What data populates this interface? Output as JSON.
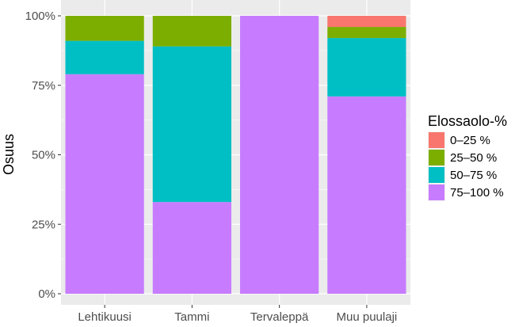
{
  "chart_data": {
    "type": "bar",
    "stacked": true,
    "normalized": true,
    "categories": [
      "Lehtikuusi",
      "Tammi",
      "Tervaleppä",
      "Muu puulaji"
    ],
    "series": [
      {
        "name": "0–25 %",
        "color": "#F8766D",
        "values": [
          0.0,
          0.0,
          0.0,
          0.04
        ]
      },
      {
        "name": "25–50 %",
        "color": "#7CAE00",
        "values": [
          0.09,
          0.11,
          0.0,
          0.04
        ]
      },
      {
        "name": "50–75 %",
        "color": "#00BFC4",
        "values": [
          0.12,
          0.56,
          0.0,
          0.21
        ]
      },
      {
        "name": "75–100 %",
        "color": "#C77CFF",
        "values": [
          0.79,
          0.33,
          1.0,
          0.71
        ]
      }
    ],
    "ylabel": "Osuus",
    "xlabel": "",
    "ylim": [
      0,
      1
    ],
    "yticks": [
      {
        "value": 0,
        "label": "0%"
      },
      {
        "value": 0.25,
        "label": "25%"
      },
      {
        "value": 0.5,
        "label": "50%"
      },
      {
        "value": 0.75,
        "label": "75%"
      },
      {
        "value": 1,
        "label": "100%"
      }
    ],
    "grid": true,
    "legend": {
      "title": "Elossaolo-%",
      "position": "right"
    }
  }
}
